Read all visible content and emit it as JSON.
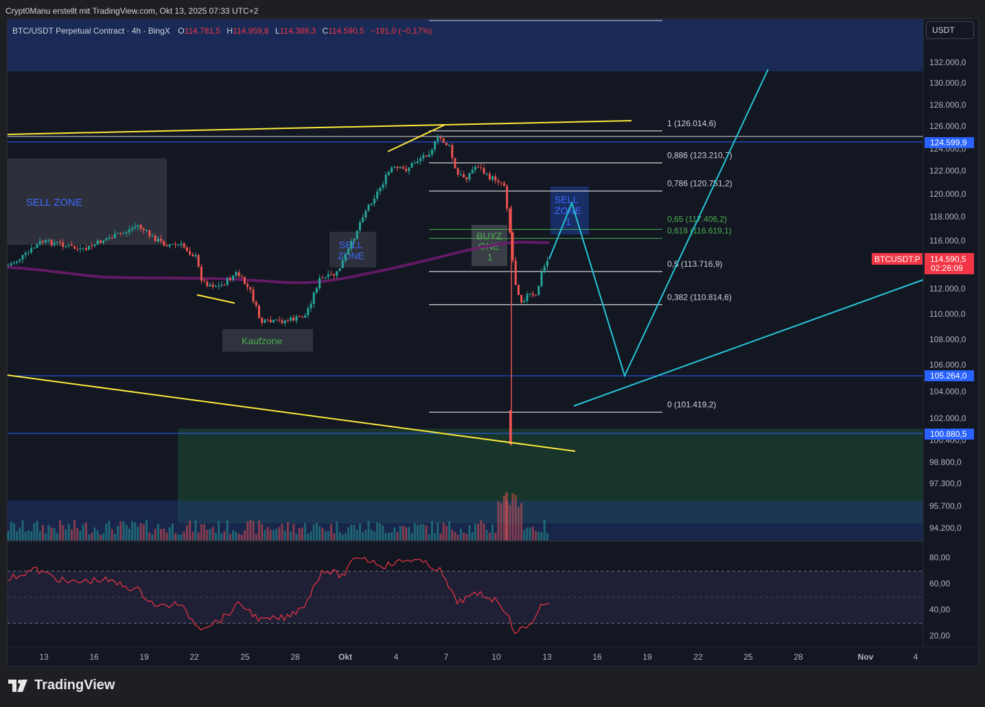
{
  "header": {
    "attribution": "Crypt0Manu erstellt mit TradingView.com, Okt 13, 2025 07:33 UTC+2"
  },
  "legend": {
    "symbol": "BTC/USDT Perpetual Contract · 4h · BingX",
    "o_label": "O",
    "o_value": "114.781,5",
    "h_label": "H",
    "h_value": "114.959,8",
    "l_label": "L",
    "l_value": "114.389,3",
    "c_label": "C",
    "c_value": "114.590,5",
    "change": "−191,0 (−0,17%)"
  },
  "currency_button": "USDT",
  "colors": {
    "background": "#131722",
    "up": "#26a69a",
    "down": "#ef5350",
    "fib": "#ffffff",
    "fib_green": "#4caf50",
    "trendline": "#ffeb3b",
    "projection": "#26c6da",
    "ma": "#6a1b6a",
    "rsi": "#f23645",
    "hline": "#2962ff"
  },
  "chart_data": {
    "type": "candlestick",
    "symbol": "BTC/USDT Perpetual Contract",
    "interval": "4h",
    "exchange": "BingX",
    "y_axis": {
      "ticks": [
        "132.000,0",
        "130.000,0",
        "128.000,0",
        "126.000,0",
        "124.000,0",
        "122.000,0",
        "120.000,0",
        "118.000,0",
        "116.000,0",
        "114.000,0",
        "112.000,0",
        "110.000,0",
        "108.000,0",
        "106.000,0",
        "104.000,0",
        "102.000,0",
        "100.400,0",
        "98.800,0",
        "97.300,0",
        "95.700,0",
        "94.200,0"
      ]
    },
    "x_axis": {
      "ticks": [
        "13",
        "16",
        "19",
        "22",
        "25",
        "28",
        "Okt",
        "4",
        "7",
        "10",
        "13",
        "16",
        "19",
        "22",
        "25",
        "28",
        "Nov",
        "4"
      ]
    },
    "price_labels": {
      "level_high": "124.599,9",
      "level_mid": "105.264,0",
      "level_low": "100.880,5",
      "symbol_tag": "BTCUSDT.P",
      "last_price": "114.590,5",
      "countdown": "02:26:09"
    },
    "fibonacci": [
      {
        "label": "1 (126.014,6)",
        "level": 126014.6
      },
      {
        "label": "0,886 (123.210,7)",
        "level": 123210.7
      },
      {
        "label": "0,786 (120.751,2)",
        "level": 120751.2
      },
      {
        "label": "0,65 (117.406,2)",
        "level": 117406.2
      },
      {
        "label": "0,618 (116.619,1)",
        "level": 116619.1
      },
      {
        "label": "0,5 (113.716,9)",
        "level": 113716.9
      },
      {
        "label": "0,382 (110.814,6)",
        "level": 110814.6
      },
      {
        "label": "0 (101.419,2)",
        "level": 101419.2
      }
    ],
    "zones": {
      "sell_zone_left": "SELL ZONE",
      "sell_zone_mid_line1": "SELL",
      "sell_zone_mid_line2": "ZONE",
      "kaufzone": "Kaufzone",
      "buy_zone_line1": "BUYZ",
      "buy_zone_line2": "ONE",
      "buy_zone_line3": "1",
      "sell_zone_right_line1": "SELL",
      "sell_zone_right_line2": "ZONE",
      "sell_zone_right_line3": "1"
    },
    "rsi_axis": {
      "ticks": [
        "80,00",
        "60,00",
        "40,00",
        "20,00"
      ]
    }
  },
  "footer": {
    "brand": "TradingView"
  }
}
